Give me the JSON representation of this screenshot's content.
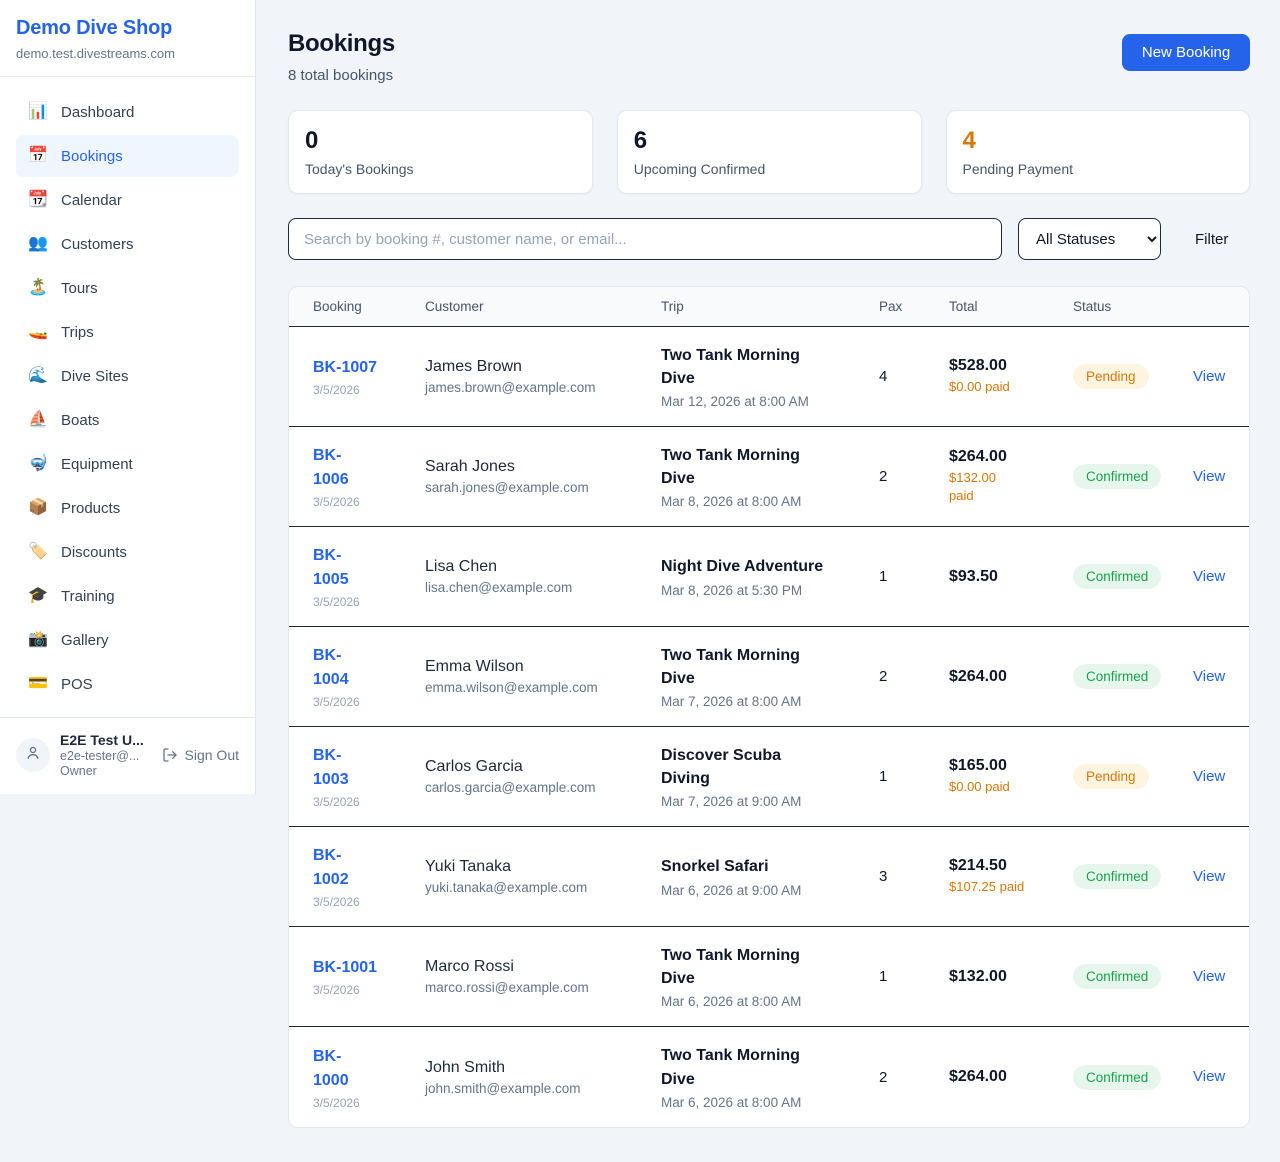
{
  "sidebar": {
    "shop_name": "Demo Dive Shop",
    "shop_domain": "demo.test.divestreams.com",
    "items": [
      {
        "icon": "📊",
        "label": "Dashboard",
        "active": false
      },
      {
        "icon": "📅",
        "label": "Bookings",
        "active": true
      },
      {
        "icon": "📆",
        "label": "Calendar",
        "active": false
      },
      {
        "icon": "👥",
        "label": "Customers",
        "active": false
      },
      {
        "icon": "🏝️",
        "label": "Tours",
        "active": false
      },
      {
        "icon": "🚤",
        "label": "Trips",
        "active": false
      },
      {
        "icon": "🌊",
        "label": "Dive Sites",
        "active": false
      },
      {
        "icon": "⛵",
        "label": "Boats",
        "active": false
      },
      {
        "icon": "🤿",
        "label": "Equipment",
        "active": false
      },
      {
        "icon": "📦",
        "label": "Products",
        "active": false
      },
      {
        "icon": "🏷️",
        "label": "Discounts",
        "active": false
      },
      {
        "icon": "🎓",
        "label": "Training",
        "active": false
      },
      {
        "icon": "📸",
        "label": "Gallery",
        "active": false
      },
      {
        "icon": "💳",
        "label": "POS",
        "active": false
      }
    ],
    "user": {
      "name": "E2E Test U...",
      "email": "e2e-tester@...",
      "role": "Owner",
      "sign_out_label": "Sign Out"
    }
  },
  "header": {
    "title": "Bookings",
    "subtitle": "8 total bookings",
    "new_booking_label": "New Booking"
  },
  "stats": [
    {
      "value": "0",
      "label": "Today's Bookings",
      "value_color": "#0f172a"
    },
    {
      "value": "6",
      "label": "Upcoming Confirmed",
      "value_color": "#0f172a"
    },
    {
      "value": "4",
      "label": "Pending Payment",
      "value_color": "#d97706"
    }
  ],
  "controls": {
    "search_placeholder": "Search by booking #, customer name, or email...",
    "status_filter_value": "All Statuses",
    "filter_label": "Filter"
  },
  "table": {
    "columns": [
      "Booking",
      "Customer",
      "Trip",
      "Pax",
      "Total",
      "Status"
    ],
    "view_label": "View",
    "rows": [
      {
        "id": "BK-1007",
        "id_two_line": false,
        "date": "3/5/2026",
        "customer": "James Brown",
        "email": "james.brown@example.com",
        "trip": "Two Tank Morning Dive",
        "trip_two_line": true,
        "trip_datetime": "Mar 12, 2026 at 8:00 AM",
        "pax": "4",
        "total": "$528.00",
        "paid": "$0.00 paid",
        "paid_wrap": false,
        "status": "Pending"
      },
      {
        "id": "BK-1006",
        "id_two_line": true,
        "date": "3/5/2026",
        "customer": "Sarah Jones",
        "email": "sarah.jones@example.com",
        "trip": "Two Tank Morning Dive",
        "trip_two_line": true,
        "trip_datetime": "Mar 8, 2026 at 8:00 AM",
        "pax": "2",
        "total": "$264.00",
        "paid": "$132.00 paid",
        "paid_wrap": true,
        "status": "Confirmed"
      },
      {
        "id": "BK-1005",
        "id_two_line": true,
        "date": "3/5/2026",
        "customer": "Lisa Chen",
        "email": "lisa.chen@example.com",
        "trip": "Night Dive Adventure",
        "trip_two_line": false,
        "trip_datetime": "Mar 8, 2026 at 5:30 PM",
        "pax": "1",
        "total": "$93.50",
        "paid": "",
        "paid_wrap": false,
        "status": "Confirmed"
      },
      {
        "id": "BK-1004",
        "id_two_line": true,
        "date": "3/5/2026",
        "customer": "Emma Wilson",
        "email": "emma.wilson@example.com",
        "trip": "Two Tank Morning Dive",
        "trip_two_line": true,
        "trip_datetime": "Mar 7, 2026 at 8:00 AM",
        "pax": "2",
        "total": "$264.00",
        "paid": "",
        "paid_wrap": false,
        "status": "Confirmed"
      },
      {
        "id": "BK-1003",
        "id_two_line": true,
        "date": "3/5/2026",
        "customer": "Carlos Garcia",
        "email": "carlos.garcia@example.com",
        "trip": "Discover Scuba Diving",
        "trip_two_line": true,
        "trip_datetime": "Mar 7, 2026 at 9:00 AM",
        "pax": "1",
        "total": "$165.00",
        "paid": "$0.00 paid",
        "paid_wrap": false,
        "status": "Pending"
      },
      {
        "id": "BK-1002",
        "id_two_line": true,
        "date": "3/5/2026",
        "customer": "Yuki Tanaka",
        "email": "yuki.tanaka@example.com",
        "trip": "Snorkel Safari",
        "trip_two_line": false,
        "trip_datetime": "Mar 6, 2026 at 9:00 AM",
        "pax": "3",
        "total": "$214.50",
        "paid": "$107.25 paid",
        "paid_wrap": false,
        "status": "Confirmed"
      },
      {
        "id": "BK-1001",
        "id_two_line": false,
        "date": "3/5/2026",
        "customer": "Marco Rossi",
        "email": "marco.rossi@example.com",
        "trip": "Two Tank Morning Dive",
        "trip_two_line": true,
        "trip_datetime": "Mar 6, 2026 at 8:00 AM",
        "pax": "1",
        "total": "$132.00",
        "paid": "",
        "paid_wrap": false,
        "status": "Confirmed"
      },
      {
        "id": "BK-1000",
        "id_two_line": true,
        "date": "3/5/2026",
        "customer": "John Smith",
        "email": "john.smith@example.com",
        "trip": "Two Tank Morning Dive",
        "trip_two_line": true,
        "trip_datetime": "Mar 6, 2026 at 8:00 AM",
        "pax": "2",
        "total": "$264.00",
        "paid": "",
        "paid_wrap": false,
        "status": "Confirmed"
      }
    ]
  },
  "colors": {
    "brand_blue": "#2563eb",
    "pending_text": "#d97706",
    "pending_bg": "#fdf5e0",
    "confirmed_text": "#16a34a",
    "confirmed_bg": "#e7f6ec",
    "page_bg": "#f1f5f9"
  }
}
